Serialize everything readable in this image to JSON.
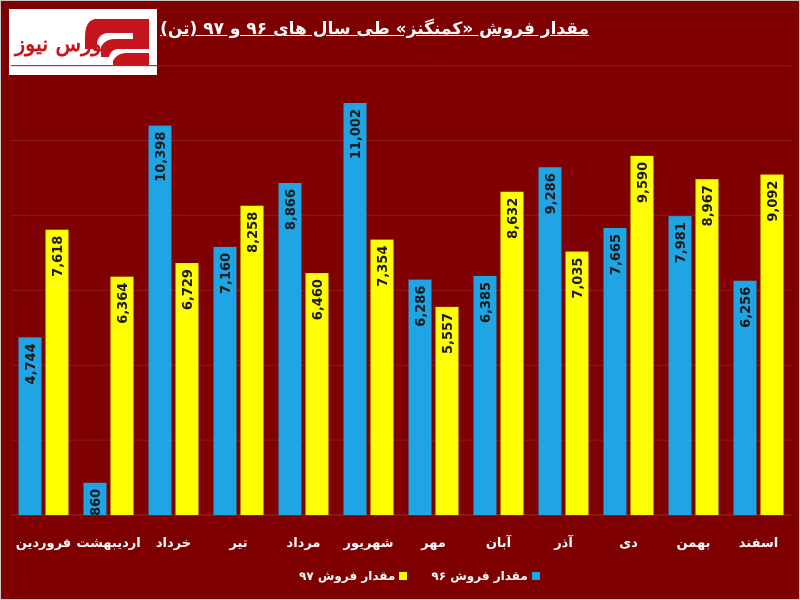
{
  "logo": {
    "text": "بورس نیوز"
  },
  "chart_data": {
    "type": "bar",
    "title": "مقدار فروش «کمنگنز» طی سال های ۹۶ و ۹۷ (تن)",
    "categories": [
      "فروردین",
      "اردیبهشت",
      "خرداد",
      "تیر",
      "مرداد",
      "شهریور",
      "مهر",
      "آبان",
      "آذر",
      "دی",
      "بهمن",
      "اسفند"
    ],
    "series": [
      {
        "name": "مقدار فروش ۹۶",
        "color": "#1fa5e3",
        "values": [
          4744,
          860,
          10398,
          7160,
          8866,
          11002,
          6286,
          6385,
          9286,
          7665,
          7981,
          6256
        ],
        "labels": [
          "4,744",
          "860",
          "10,398",
          "7,160",
          "8,866",
          "11,002",
          "6,286",
          "6,385",
          "9,286",
          "7,665",
          "7,981",
          "6,256"
        ]
      },
      {
        "name": "مقدار فروش ۹۷",
        "color": "#ffff00",
        "values": [
          7618,
          6364,
          6729,
          8258,
          6460,
          7354,
          5557,
          8632,
          7035,
          9590,
          8967,
          9092
        ],
        "labels": [
          "7,618",
          "6,364",
          "6,729",
          "8,258",
          "6,460",
          "7,354",
          "5,557",
          "8,632",
          "7,035",
          "9,590",
          "8,967",
          "9,092"
        ]
      }
    ],
    "ylim": [
      0,
      12000
    ],
    "grid": true,
    "legend_position": "bottom"
  }
}
